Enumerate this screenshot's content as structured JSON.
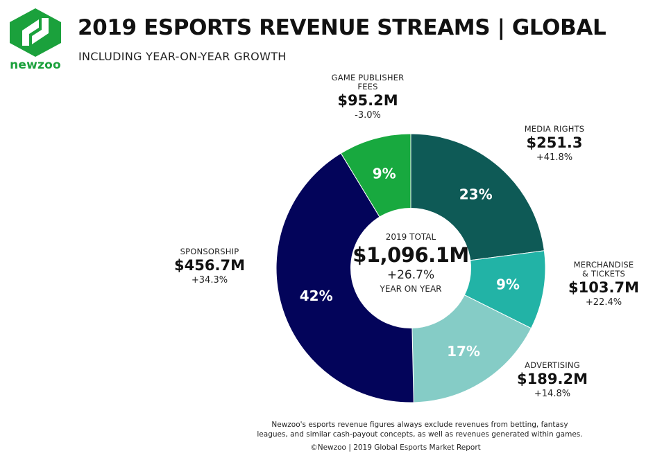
{
  "brand": {
    "name": "newzoo",
    "green": "#1ba13c"
  },
  "header": {
    "title": "2019 ESPORTS REVENUE STREAMS | GLOBAL",
    "subtitle": "INCLUDING YEAR-ON-YEAR GROWTH"
  },
  "center": {
    "label": "2019 TOTAL",
    "value": "$1,096.1M",
    "growth": "+26.7%",
    "sublabel": "YEAR ON YEAR"
  },
  "chart_data": {
    "type": "pie",
    "donut": true,
    "unit": "$M",
    "slices": [
      {
        "key": "media",
        "name": "MEDIA RIGHTS",
        "value_label": "$251.3",
        "value": 251.3,
        "growth": "+41.8%",
        "percent": 23,
        "percent_label": "23%",
        "color": "#0e5a56"
      },
      {
        "key": "merch",
        "name": "MERCHANDISE & TICKETS",
        "value_label": "$103.7M",
        "value": 103.7,
        "growth": "+22.4%",
        "percent": 9,
        "percent_label": "9%",
        "color": "#22b3a6"
      },
      {
        "key": "adv",
        "name": "ADVERTISING",
        "value_label": "$189.2M",
        "value": 189.2,
        "growth": "+14.8%",
        "percent": 17,
        "percent_label": "17%",
        "color": "#85ccc6"
      },
      {
        "key": "spon",
        "name": "SPONSORSHIP",
        "value_label": "$456.7M",
        "value": 456.7,
        "growth": "+34.3%",
        "percent": 42,
        "percent_label": "42%",
        "color": "#03045a"
      },
      {
        "key": "pub",
        "name": "GAME PUBLISHER FEES",
        "value_label": "$95.2M",
        "value": 95.2,
        "growth": "-3.0%",
        "percent": 9,
        "percent_label": "9%",
        "color": "#18a93f"
      }
    ]
  },
  "callouts": {
    "media": {
      "name": "MEDIA RIGHTS",
      "value": "$251.3",
      "growth": "+41.8%"
    },
    "merch": {
      "name_line1": "MERCHANDISE",
      "name_line2": "& TICKETS",
      "value": "$103.7M",
      "growth": "+22.4%"
    },
    "adv": {
      "name": "ADVERTISING",
      "value": "$189.2M",
      "growth": "+14.8%"
    },
    "spon": {
      "name": "SPONSORSHIP",
      "value": "$456.7M",
      "growth": "+34.3%"
    },
    "pub": {
      "name_line1": "GAME PUBLISHER",
      "name_line2": "FEES",
      "value": "$95.2M",
      "growth": "-3.0%"
    }
  },
  "footer": {
    "note_line1": "Newzoo's esports revenue figures always exclude revenues from betting, fantasy",
    "note_line2": "leagues, and similar cash-payout concepts, as well as revenues generated within games.",
    "credit": "©Newzoo | 2019 Global Esports Market Report"
  }
}
